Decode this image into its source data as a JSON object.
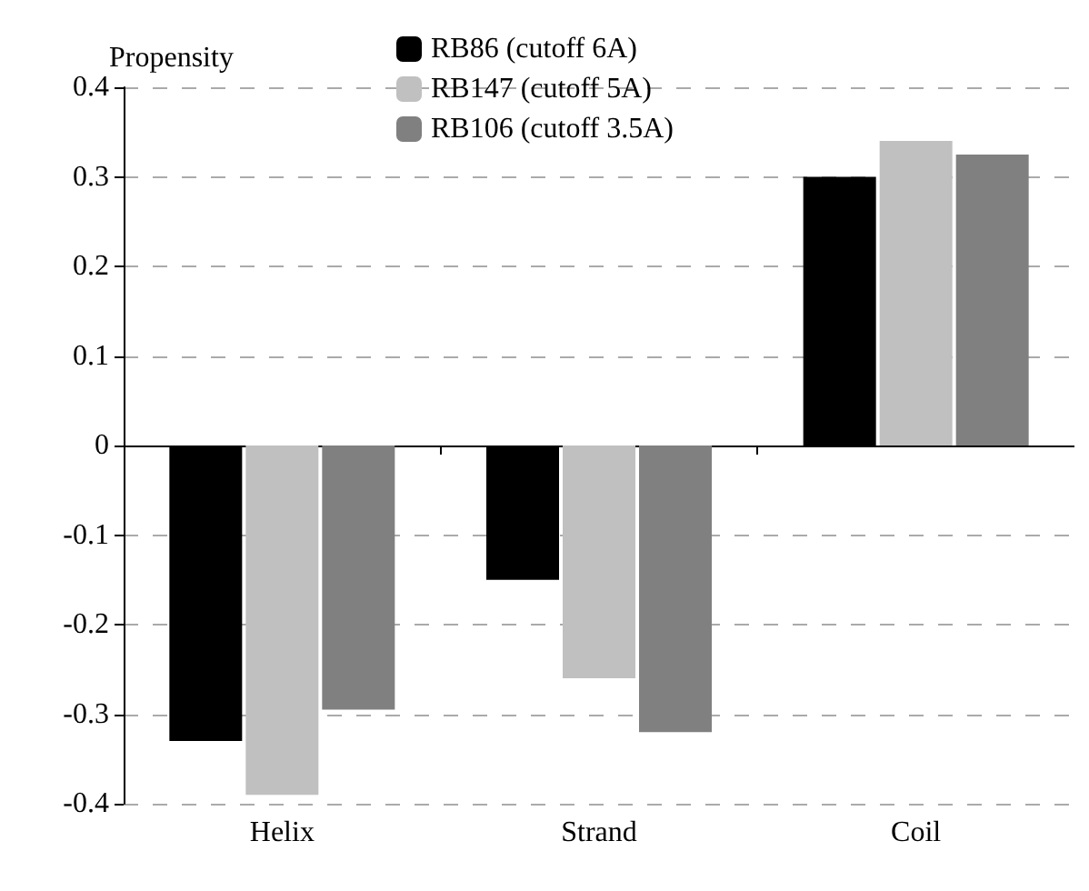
{
  "chart_data": {
    "type": "bar",
    "ylabel": "Propensity",
    "categories": [
      "Helix",
      "Strand",
      "Coil"
    ],
    "series": [
      {
        "name": "RB86 (cutoff 6A)",
        "color": "#000000",
        "values": [
          -0.33,
          -0.15,
          0.3
        ]
      },
      {
        "name": "RB147 (cutoff 5A)",
        "color": "#c0c0c0",
        "values": [
          -0.39,
          -0.26,
          0.34
        ]
      },
      {
        "name": "RB106 (cutoff 3.5A)",
        "color": "#808080",
        "values": [
          -0.295,
          -0.32,
          0.325
        ]
      }
    ],
    "ylim": [
      -0.4,
      0.4
    ],
    "yticks": [
      -0.4,
      -0.3,
      -0.2,
      -0.1,
      0,
      0.1,
      0.2,
      0.3,
      0.4
    ],
    "grid": "y",
    "legend": "top"
  }
}
